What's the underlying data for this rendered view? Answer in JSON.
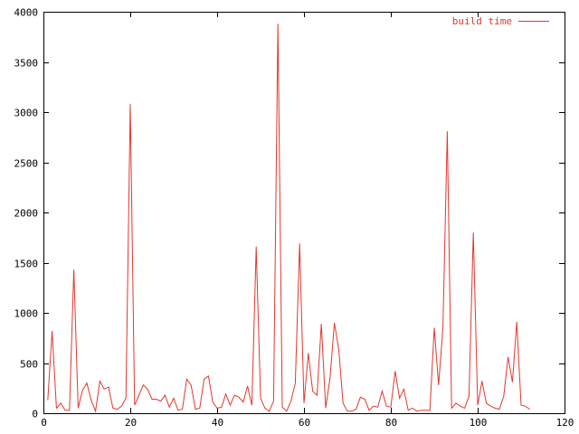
{
  "chart_data": {
    "type": "line",
    "title": "",
    "xlabel": "",
    "ylabel": "",
    "xlim": [
      0,
      120
    ],
    "ylim": [
      0,
      4000
    ],
    "xticks": [
      0,
      20,
      40,
      60,
      80,
      100,
      120
    ],
    "yticks": [
      0,
      500,
      1000,
      1500,
      2000,
      2500,
      3000,
      3500,
      4000
    ],
    "grid": false,
    "legend_position": "top-right",
    "series": [
      {
        "name": "build time",
        "color": "#e0382f",
        "x": [
          1,
          2,
          3,
          4,
          5,
          6,
          7,
          8,
          9,
          10,
          11,
          12,
          13,
          14,
          15,
          16,
          17,
          18,
          19,
          20,
          21,
          22,
          23,
          24,
          25,
          26,
          27,
          28,
          29,
          30,
          31,
          32,
          33,
          34,
          35,
          36,
          37,
          38,
          39,
          40,
          41,
          42,
          43,
          44,
          45,
          46,
          47,
          48,
          49,
          50,
          51,
          52,
          53,
          54,
          55,
          56,
          57,
          58,
          59,
          60,
          61,
          62,
          63,
          64,
          65,
          66,
          67,
          68,
          69,
          70,
          71,
          72,
          73,
          74,
          75,
          76,
          77,
          78,
          79,
          80,
          81,
          82,
          83,
          84,
          85,
          86,
          87,
          88,
          89,
          90,
          91,
          92,
          93,
          94,
          95,
          96,
          97,
          98,
          99,
          100,
          101,
          102,
          103,
          104,
          105,
          106,
          107,
          108,
          109,
          110,
          111,
          112
        ],
        "values": [
          130,
          820,
          50,
          100,
          30,
          30,
          1430,
          50,
          230,
          300,
          130,
          20,
          320,
          240,
          260,
          50,
          40,
          70,
          150,
          3080,
          80,
          180,
          280,
          240,
          140,
          140,
          120,
          180,
          60,
          150,
          30,
          40,
          340,
          280,
          40,
          50,
          340,
          370,
          110,
          50,
          60,
          190,
          80,
          180,
          160,
          110,
          270,
          80,
          1660,
          150,
          50,
          20,
          120,
          3880,
          60,
          20,
          120,
          300,
          1690,
          100,
          600,
          220,
          180,
          890,
          50,
          350,
          900,
          640,
          100,
          20,
          20,
          40,
          160,
          140,
          30,
          70,
          60,
          220,
          70,
          60,
          420,
          150,
          240,
          30,
          50,
          20,
          30,
          30,
          30,
          850,
          280,
          850,
          2810,
          50,
          100,
          70,
          50,
          170,
          1800,
          80,
          320,
          100,
          70,
          50,
          40,
          170,
          560,
          310,
          910,
          80,
          70,
          40
        ]
      }
    ]
  }
}
